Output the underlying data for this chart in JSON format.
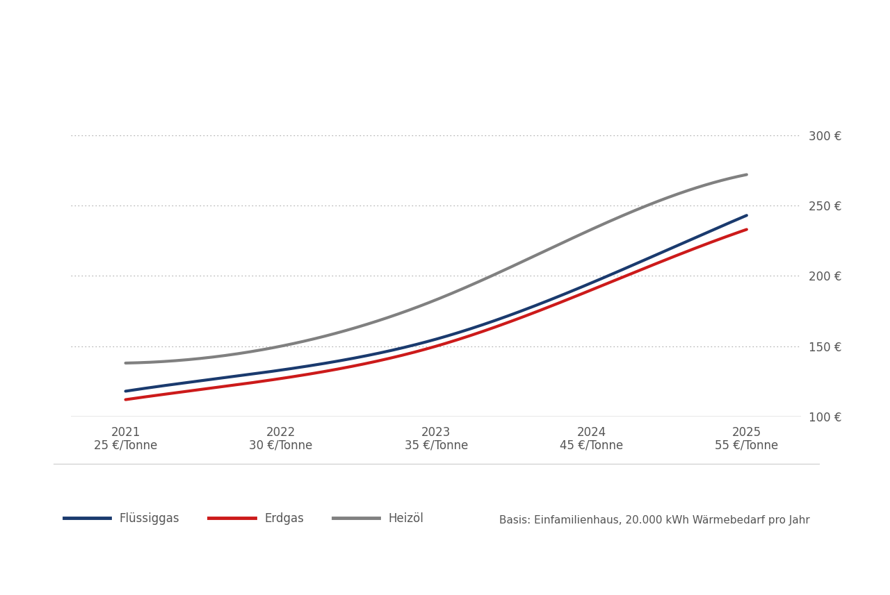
{
  "x_years": [
    "2021",
    "2022",
    "2023",
    "2024",
    "2025"
  ],
  "x_prices": [
    "25 €/Tonne",
    "30 €/Tonne",
    "35 €/Tonne",
    "45 €/Tonne",
    "55 €/Tonne"
  ],
  "x_positions": [
    0,
    1,
    2,
    3,
    4
  ],
  "fluessiggas": [
    118,
    133,
    155,
    195,
    243
  ],
  "erdgas": [
    112,
    127,
    150,
    190,
    233
  ],
  "heizoel": [
    138,
    150,
    183,
    233,
    272
  ],
  "fluessiggas_color": "#1a3a6e",
  "erdgas_color": "#cc1a1a",
  "heizoel_color": "#808080",
  "ylim_min": 100,
  "ylim_max": 320,
  "yticks": [
    100,
    150,
    200,
    250,
    300
  ],
  "ytick_labels": [
    "100 €",
    "150 €",
    "200 €",
    "250 €",
    "300 €"
  ],
  "line_width": 3.0,
  "background_color": "#ffffff",
  "grid_color": "#aaaaaa",
  "legend_fluessiggas": "Flüssiggas",
  "legend_erdgas": "Erdgas",
  "legend_heizoel": "Heizöl",
  "basis_text": "Basis: Einfamilienhaus, 20.000 kWh Wärmebedarf pro Jahr",
  "axis_label_color": "#555555",
  "axis_label_fontsize": 12,
  "year_fontsize": 12,
  "price_fontsize": 12,
  "legend_fontsize": 12,
  "basis_fontsize": 11
}
